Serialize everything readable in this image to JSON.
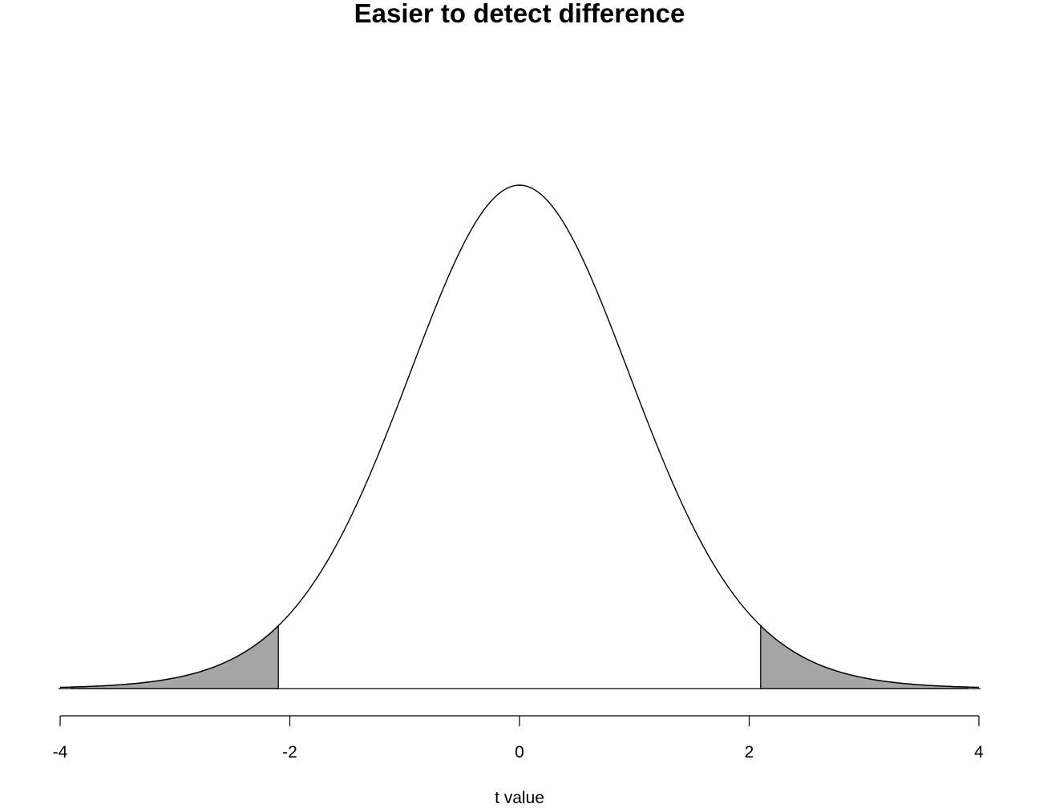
{
  "chart_data": {
    "type": "area",
    "title": "Easier to detect difference",
    "xlabel": "t value",
    "ylabel": "",
    "xlim": [
      -4,
      4
    ],
    "ylim": [
      0,
      0.4
    ],
    "x_ticks": [
      -4,
      -2,
      0,
      2,
      4
    ],
    "x_tick_labels": [
      "-4",
      "-2",
      "0",
      "2",
      "4"
    ],
    "y_axis_shown": false,
    "grid": false,
    "curve": {
      "distribution": "t",
      "df": 18,
      "x_range": [
        -4,
        4
      ],
      "stroke": "#000000"
    },
    "shaded_regions": [
      {
        "from": -3.9,
        "to": -2.1,
        "fill": "#a6a6a6"
      },
      {
        "from": 2.1,
        "to": 3.9,
        "fill": "#a6a6a6"
      }
    ]
  }
}
